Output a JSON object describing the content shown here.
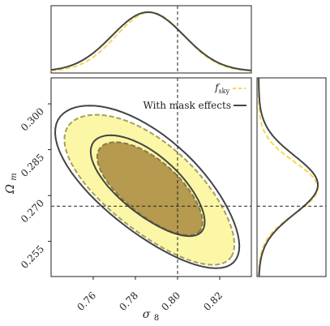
{
  "chart_data": {
    "type": "corner-contour",
    "x_param": "σ8",
    "y_param": "Ωm",
    "xlim": [
      0.74,
      0.835
    ],
    "ylim": [
      0.2435,
      0.3085
    ],
    "x_ticks": [
      0.76,
      0.78,
      0.8,
      0.82
    ],
    "x_tick_labels": [
      "0.76",
      "0.78",
      "0.80",
      "0.82"
    ],
    "y_ticks": [
      0.255,
      0.27,
      0.285,
      0.3
    ],
    "y_tick_labels": [
      "0.255",
      "0.270",
      "0.285",
      "0.300"
    ],
    "fiducial": {
      "sigma8": 0.8,
      "omega_m": 0.2665
    },
    "series": [
      {
        "name": "f_sky",
        "legend_main": "f",
        "legend_sub": "sky",
        "color": "#f6d84a",
        "line": "dashed",
        "fill_outer": "#fbf7a6",
        "fill_inner": "#b59a4f",
        "sigma8_mean": 0.787,
        "sigma8_sd": 0.016,
        "omega_m_mean": 0.2725,
        "omega_m_sd": 0.0085
      },
      {
        "name": "With mask effects",
        "color": "#444444",
        "line": "solid",
        "sigma8_mean": 0.786,
        "sigma8_sd": 0.017,
        "omega_m_mean": 0.2735,
        "omega_m_sd": 0.0095
      }
    ]
  }
}
